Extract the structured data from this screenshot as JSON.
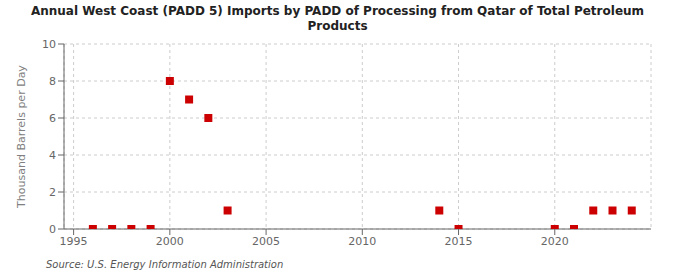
{
  "chart_data": {
    "type": "scatter",
    "title": "Annual West Coast (PADD 5) Imports by PADD of Processing from Qatar of Total Petroleum\nProducts",
    "ylabel": "Thousand Barrels per Day",
    "source": "Source: U.S. Energy Information Administration",
    "x": [
      1996,
      1997,
      1998,
      1999,
      2000,
      2001,
      2002,
      2003,
      2014,
      2015,
      2020,
      2021,
      2022,
      2023,
      2024
    ],
    "values": [
      0,
      0,
      0,
      0,
      8,
      7,
      6,
      1,
      1,
      0,
      0,
      0,
      1,
      1,
      1
    ],
    "color": "#cc0000",
    "marker": "square",
    "xlim": [
      1994.5,
      2025
    ],
    "ylim": [
      0,
      10
    ],
    "xticks": [
      1995,
      2000,
      2005,
      2010,
      2015,
      2020
    ],
    "yticks": [
      0,
      2,
      4,
      6,
      8,
      10
    ],
    "grid": true
  }
}
